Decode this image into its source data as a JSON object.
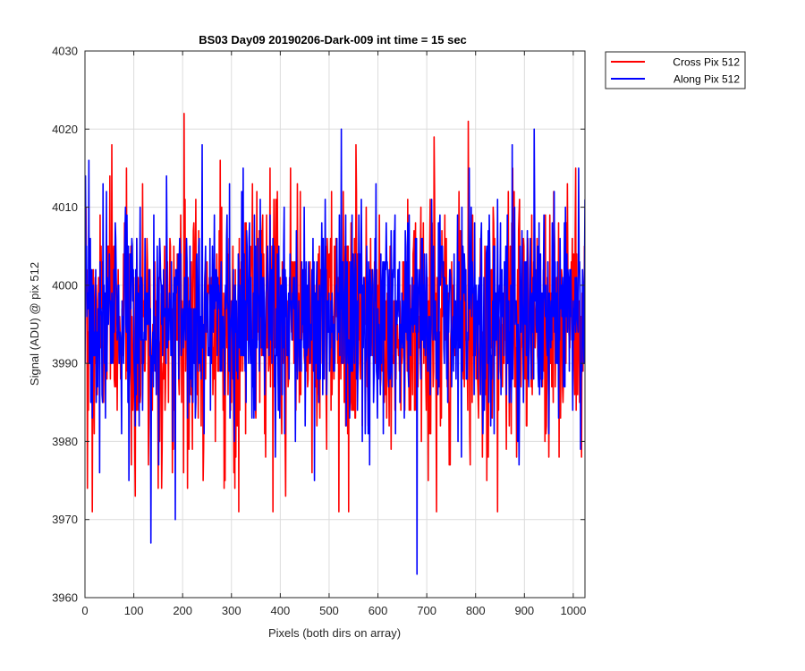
{
  "chart_data": {
    "type": "line",
    "title": "BS03 Day09 20190206-Dark-009 int time = 15 sec",
    "xlabel": "Pixels (both dirs on array)",
    "ylabel": "Signal (ADU) @ pix 512",
    "xlim": [
      0,
      1024
    ],
    "ylim": [
      3960,
      4030
    ],
    "xticks": [
      0,
      100,
      200,
      300,
      400,
      500,
      600,
      700,
      800,
      900,
      1000
    ],
    "yticks": [
      3960,
      3970,
      3980,
      3990,
      4000,
      4010,
      4020,
      4030
    ],
    "grid": true,
    "legend_position": "outside top-right",
    "series": [
      {
        "name": "Cross Pix 512",
        "color": "#ff0000",
        "stats": {
          "mean": 3995,
          "std": 7.8,
          "min": 3971,
          "max": 4022
        },
        "extremes": [
          {
            "x": 5,
            "y": 3974
          },
          {
            "x": 15,
            "y": 3971
          },
          {
            "x": 55,
            "y": 4018
          },
          {
            "x": 85,
            "y": 4015
          },
          {
            "x": 130,
            "y": 3977
          },
          {
            "x": 150,
            "y": 3974
          },
          {
            "x": 203,
            "y": 4022
          },
          {
            "x": 210,
            "y": 3974
          },
          {
            "x": 385,
            "y": 3971
          },
          {
            "x": 465,
            "y": 3976
          },
          {
            "x": 520,
            "y": 3971
          },
          {
            "x": 540,
            "y": 3971
          },
          {
            "x": 555,
            "y": 4018
          },
          {
            "x": 715,
            "y": 4019
          },
          {
            "x": 720,
            "y": 3971
          },
          {
            "x": 785,
            "y": 4021
          },
          {
            "x": 845,
            "y": 3971
          },
          {
            "x": 1005,
            "y": 4015
          }
        ]
      },
      {
        "name": "Along Pix 512",
        "color": "#0000ff",
        "stats": {
          "mean": 3996,
          "std": 7.0,
          "min": 3963,
          "max": 4020
        },
        "extremes": [
          {
            "x": 8,
            "y": 4016
          },
          {
            "x": 90,
            "y": 3975
          },
          {
            "x": 135,
            "y": 3967
          },
          {
            "x": 185,
            "y": 3970
          },
          {
            "x": 240,
            "y": 4018
          },
          {
            "x": 470,
            "y": 3975
          },
          {
            "x": 525,
            "y": 4020
          },
          {
            "x": 680,
            "y": 3963
          },
          {
            "x": 875,
            "y": 4018
          },
          {
            "x": 920,
            "y": 4020
          },
          {
            "x": 1015,
            "y": 3979
          }
        ]
      }
    ]
  }
}
